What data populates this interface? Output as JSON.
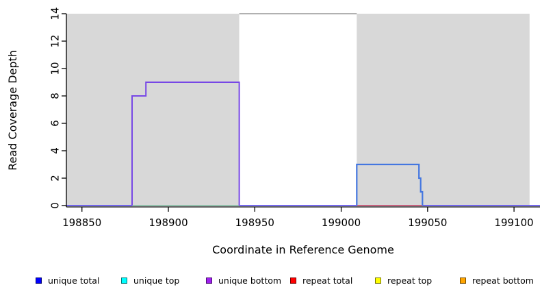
{
  "figure": {
    "background": "#FFFFFF"
  },
  "chart_data": {
    "type": "line",
    "subtype": "step-coverage-depth",
    "title": "",
    "xlabel": "Coordinate in Reference Genome",
    "ylabel": "Read Coverage Depth",
    "xlim": [
      198841,
      199115
    ],
    "ylim": [
      0,
      14
    ],
    "xticks": [
      198850,
      198900,
      198950,
      199000,
      199050,
      199100
    ],
    "yticks": [
      0,
      2,
      4,
      6,
      8,
      10,
      12,
      14
    ],
    "grid": false,
    "axis_color": "#000000",
    "shaded_regions": [
      {
        "name": "left-gray-region",
        "x1": 198841,
        "x2": 198941,
        "color": "#D8D8D8"
      },
      {
        "name": "right-gray-region",
        "x1": 199009,
        "x2": 199109,
        "color": "#D8D8D8"
      }
    ],
    "series": [
      {
        "name": "gap-depth-14-line",
        "color": "#979797",
        "width": 1.6,
        "points": [
          [
            198941,
            14
          ],
          [
            199009,
            14
          ]
        ]
      },
      {
        "name": "zero-baseline",
        "color": "#5F52EA",
        "width": 1.8,
        "points": [
          [
            198841,
            0
          ],
          [
            199115,
            0
          ]
        ]
      },
      {
        "name": "left-region-zero-line-green",
        "color": "#96D896",
        "width": 1.6,
        "points": [
          [
            198879,
            0
          ],
          [
            198941,
            0
          ]
        ]
      },
      {
        "name": "right-region-zero-line-red",
        "color": "#DC5B5B",
        "width": 1.6,
        "points": [
          [
            199009,
            0
          ],
          [
            199047,
            0
          ]
        ]
      },
      {
        "name": "unique-bottom-left-step",
        "color": "#7747E6",
        "width": 2,
        "points": [
          [
            198879,
            0
          ],
          [
            198879,
            8
          ],
          [
            198887,
            8
          ],
          [
            198887,
            9
          ],
          [
            198941,
            9
          ],
          [
            198941,
            0
          ]
        ]
      },
      {
        "name": "unique-total-right-step",
        "color": "#4477E0",
        "width": 2.2,
        "points": [
          [
            199009,
            0
          ],
          [
            199009,
            3
          ],
          [
            199045,
            3
          ],
          [
            199045,
            2
          ],
          [
            199046,
            2
          ],
          [
            199046,
            1
          ],
          [
            199047,
            1
          ],
          [
            199047,
            0
          ]
        ]
      }
    ],
    "legend": {
      "position": "bottom",
      "items": [
        {
          "label": "unique total",
          "color": "#0000FF"
        },
        {
          "label": "unique top",
          "color": "#00FFFF"
        },
        {
          "label": "unique bottom",
          "color": "#A020F0"
        },
        {
          "label": "repeat total",
          "color": "#FF0000"
        },
        {
          "label": "repeat top",
          "color": "#FFFF00"
        },
        {
          "label": "repeat bottom",
          "color": "#FFA500"
        }
      ]
    }
  }
}
